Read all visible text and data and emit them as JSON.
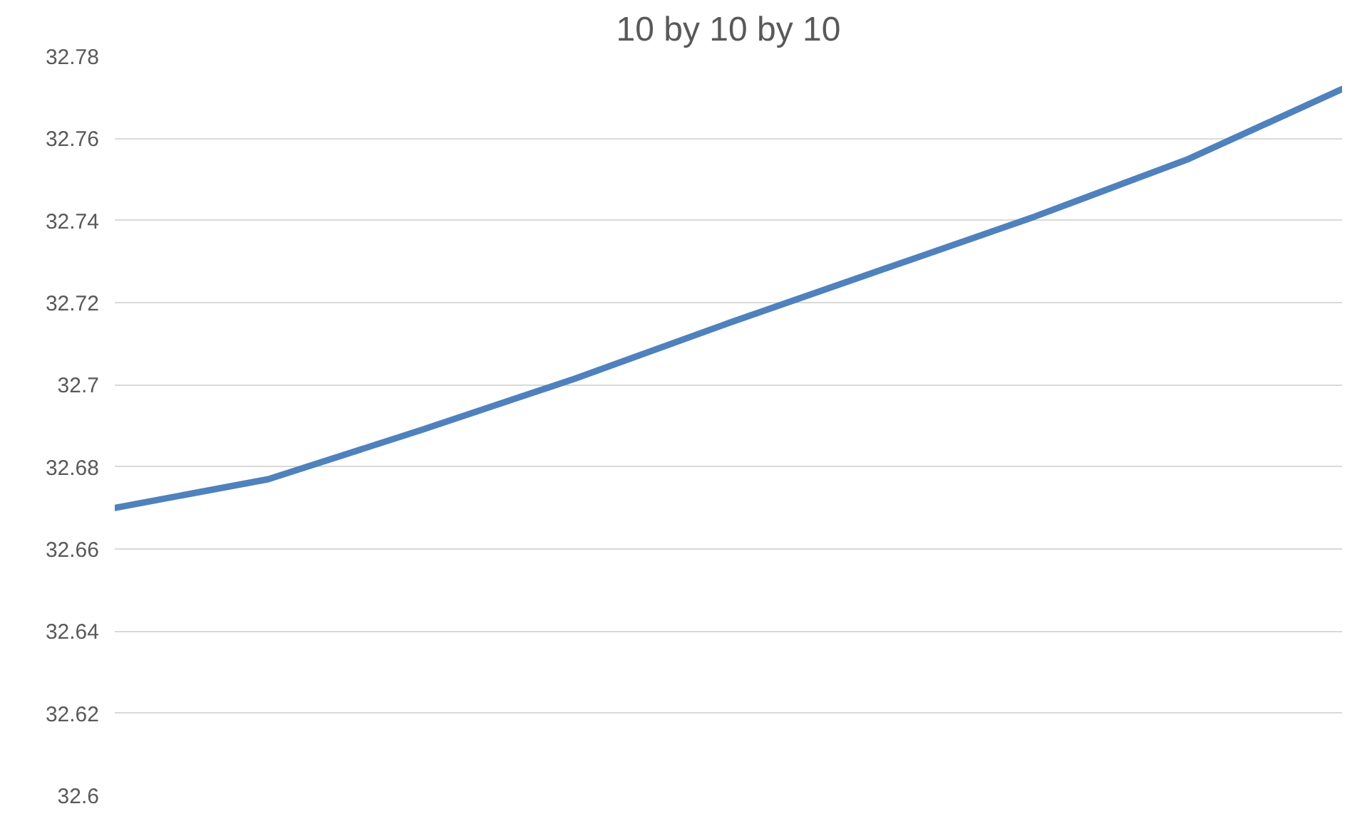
{
  "chart_data": {
    "type": "line",
    "title": "10 by 10 by 10",
    "categories": [
      null,
      null,
      null,
      null,
      null,
      null,
      null,
      null,
      null
    ],
    "series": [
      {
        "color": "#4f81bd",
        "values": [
          32.67,
          32.677,
          32.689,
          32.7015,
          32.715,
          32.728,
          32.741,
          32.755,
          32.772
        ]
      }
    ],
    "ylim": [
      32.6,
      32.78
    ],
    "yticks": [
      {
        "value": 32.6,
        "label": "32.6"
      },
      32.62,
      32.64,
      32.66,
      32.68,
      {
        "value": 32.7,
        "label": "32.7"
      },
      32.72,
      32.74,
      32.76,
      32.78
    ],
    "grid": "y",
    "tick_labels": "y",
    "marker": "none",
    "line_style": "solid"
  }
}
